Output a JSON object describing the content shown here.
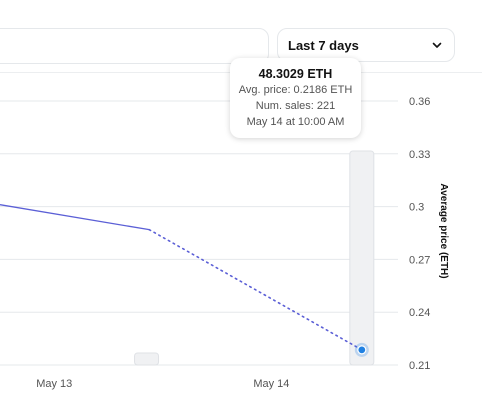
{
  "filter": {
    "time_range_label": "Last 7 days"
  },
  "tooltip": {
    "volume": "48.3029 ETH",
    "avg_price": "Avg. price: 0.2186 ETH",
    "num_sales": "Num. sales: 221",
    "timestamp": "May 14 at 10:00 AM"
  },
  "colors": {
    "line": "#5b5fd6",
    "point": "#2081e2",
    "bar": "#f0f1f3",
    "grid": "#e5e8eb"
  },
  "chart_data": {
    "type": "line",
    "ylabel": "Average price (ETH)",
    "xlabel": "",
    "ylim": [
      0.21,
      0.36
    ],
    "yticks": [
      0.36,
      0.33,
      0.3,
      0.27,
      0.24,
      0.21
    ],
    "ytick_labels": [
      "0.36",
      "0.33",
      "0.3",
      "0.27",
      "0.24",
      "0.21"
    ],
    "xticks": [
      {
        "label": "May 13",
        "t": 0
      },
      {
        "label": "May 14",
        "t": 24
      }
    ],
    "x_range": [
      -6,
      38
    ],
    "series": [
      {
        "style": "solid",
        "points": [
          {
            "t": -6,
            "y": 0.3011
          },
          {
            "t": 10.5,
            "y": 0.2869
          }
        ]
      },
      {
        "style": "dotted",
        "points": [
          {
            "t": 10.5,
            "y": 0.2869
          },
          {
            "t": 34,
            "y": 0.2186
          }
        ]
      }
    ],
    "highlight_point": {
      "t": 34,
      "y": 0.2186
    },
    "volume_bars": [
      {
        "t": 10.2,
        "value": 0.4
      },
      {
        "t": 34,
        "value": 48.3029
      }
    ]
  }
}
